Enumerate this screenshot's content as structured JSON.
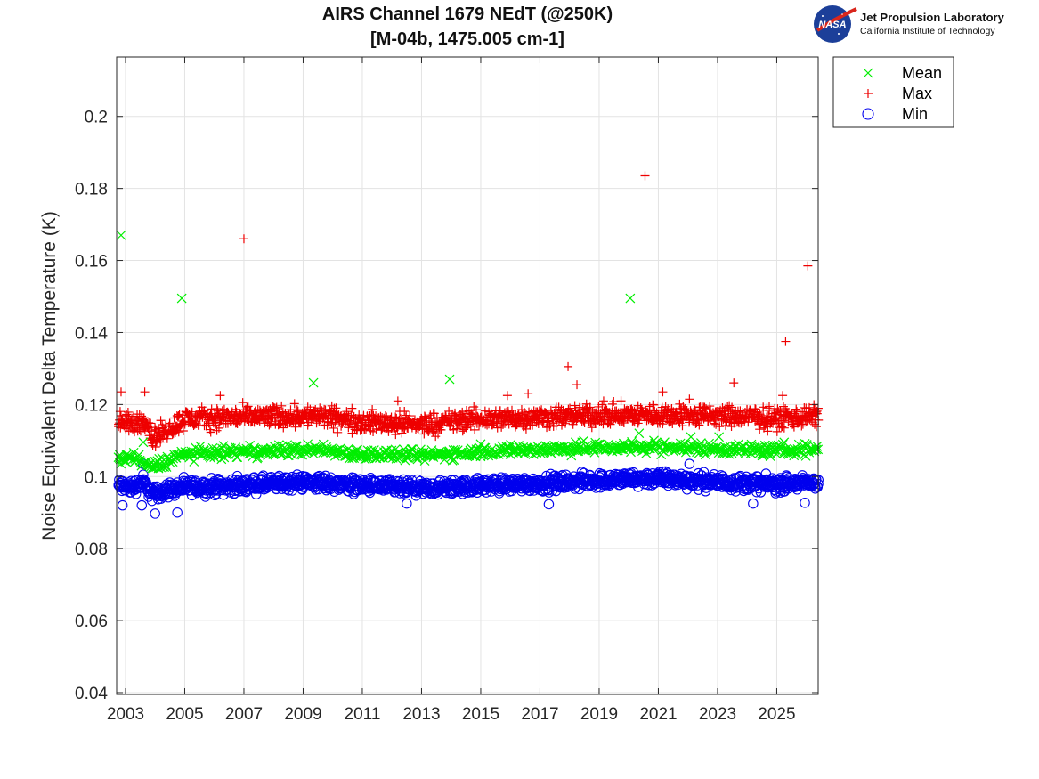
{
  "title": {
    "line1": "AIRS Channel 1679 NEdT (@250K)",
    "line2": "[M-04b, 1475.005 cm-1]"
  },
  "logo": {
    "badge_text": "NASA",
    "org_name": "Jet Propulsion Laboratory",
    "org_sub": "California Institute of Technology"
  },
  "chart_data": {
    "type": "scatter",
    "title": "AIRS Channel 1679 NEdT (@250K) [M-04b, 1475.005 cm-1]",
    "xlabel": "",
    "ylabel": "Noise Equivalent Delta Temperature (K)",
    "xlim": [
      2002.7,
      2026.4
    ],
    "ylim": [
      0.0395,
      0.2165
    ],
    "xticks": [
      2003,
      2005,
      2007,
      2009,
      2011,
      2013,
      2015,
      2017,
      2019,
      2021,
      2023,
      2025
    ],
    "yticks": [
      0.04,
      0.06,
      0.08,
      0.1,
      0.12,
      0.14,
      0.16,
      0.18,
      0.2
    ],
    "ytick_labels": [
      "0.04",
      "0.06",
      "0.08",
      "0.1",
      "0.12",
      "0.14",
      "0.16",
      "0.18",
      "0.2"
    ],
    "grid": true,
    "legend": {
      "placement": "outside-top-right"
    },
    "series": [
      {
        "name": "Mean",
        "marker": "x",
        "color": "#00ee00",
        "baseline": [
          [
            2002.75,
            0.1045
          ],
          [
            2003.2,
            0.1055
          ],
          [
            2003.9,
            0.1025
          ],
          [
            2004.4,
            0.1045
          ],
          [
            2005.0,
            0.1063
          ],
          [
            2007.0,
            0.1068
          ],
          [
            2009.5,
            0.1075
          ],
          [
            2011.0,
            0.1062
          ],
          [
            2013.0,
            0.1058
          ],
          [
            2015.0,
            0.107
          ],
          [
            2017.0,
            0.1075
          ],
          [
            2019.0,
            0.108
          ],
          [
            2021.0,
            0.1082
          ],
          [
            2023.0,
            0.1077
          ],
          [
            2025.0,
            0.1072
          ],
          [
            2026.4,
            0.1075
          ]
        ],
        "spread": 0.0012,
        "outliers": [
          [
            2002.85,
            0.167
          ],
          [
            2002.8,
            0.106
          ],
          [
            2003.6,
            0.1095
          ],
          [
            2004.9,
            0.1495
          ],
          [
            2009.35,
            0.126
          ],
          [
            2013.95,
            0.127
          ],
          [
            2015.0,
            0.109
          ],
          [
            2018.2,
            0.1095
          ],
          [
            2020.05,
            0.1495
          ],
          [
            2020.35,
            0.112
          ],
          [
            2020.85,
            0.11
          ],
          [
            2022.1,
            0.111
          ],
          [
            2023.05,
            0.111
          ],
          [
            2025.25,
            0.1095
          ]
        ]
      },
      {
        "name": "Max",
        "marker": "+",
        "color": "#ee0000",
        "baseline": [
          [
            2002.75,
            0.115
          ],
          [
            2003.2,
            0.1145
          ],
          [
            2003.7,
            0.116
          ],
          [
            2003.9,
            0.1105
          ],
          [
            2004.4,
            0.113
          ],
          [
            2005.0,
            0.116
          ],
          [
            2007.0,
            0.1165
          ],
          [
            2009.5,
            0.1168
          ],
          [
            2011.0,
            0.1152
          ],
          [
            2013.0,
            0.1145
          ],
          [
            2015.0,
            0.116
          ],
          [
            2017.0,
            0.1165
          ],
          [
            2019.0,
            0.117
          ],
          [
            2021.0,
            0.1172
          ],
          [
            2023.0,
            0.1168
          ],
          [
            2025.0,
            0.1162
          ],
          [
            2026.4,
            0.1168
          ]
        ],
        "spread": 0.0022,
        "outliers": [
          [
            2002.85,
            0.1235
          ],
          [
            2003.65,
            0.1235
          ],
          [
            2006.2,
            0.1225
          ],
          [
            2007.0,
            0.166
          ],
          [
            2012.2,
            0.121
          ],
          [
            2015.9,
            0.1225
          ],
          [
            2016.6,
            0.123
          ],
          [
            2017.95,
            0.1305
          ],
          [
            2018.25,
            0.1255
          ],
          [
            2019.15,
            0.121
          ],
          [
            2020.55,
            0.1835
          ],
          [
            2021.15,
            0.1235
          ],
          [
            2022.05,
            0.1215
          ],
          [
            2023.55,
            0.126
          ],
          [
            2025.2,
            0.1225
          ],
          [
            2025.3,
            0.1375
          ],
          [
            2026.05,
            0.1585
          ]
        ]
      },
      {
        "name": "Min",
        "marker": "o",
        "color": "#0000ee",
        "baseline": [
          [
            2002.75,
            0.0975
          ],
          [
            2003.2,
            0.097
          ],
          [
            2003.6,
            0.0985
          ],
          [
            2003.9,
            0.095
          ],
          [
            2004.5,
            0.0965
          ],
          [
            2005.0,
            0.097
          ],
          [
            2007.0,
            0.0975
          ],
          [
            2009.0,
            0.0985
          ],
          [
            2011.0,
            0.0975
          ],
          [
            2013.0,
            0.0965
          ],
          [
            2015.0,
            0.0975
          ],
          [
            2017.0,
            0.098
          ],
          [
            2019.0,
            0.099
          ],
          [
            2021.0,
            0.0995
          ],
          [
            2023.0,
            0.0985
          ],
          [
            2025.0,
            0.0978
          ],
          [
            2026.4,
            0.0985
          ]
        ],
        "spread": 0.0016,
        "outliers": [
          [
            2002.9,
            0.092
          ],
          [
            2003.55,
            0.092
          ],
          [
            2003.6,
            0.1035
          ],
          [
            2004.0,
            0.0897
          ],
          [
            2004.75,
            0.09
          ],
          [
            2012.5,
            0.0925
          ],
          [
            2017.3,
            0.0923
          ],
          [
            2022.05,
            0.1035
          ],
          [
            2024.2,
            0.0925
          ],
          [
            2025.95,
            0.0927
          ]
        ]
      }
    ]
  }
}
